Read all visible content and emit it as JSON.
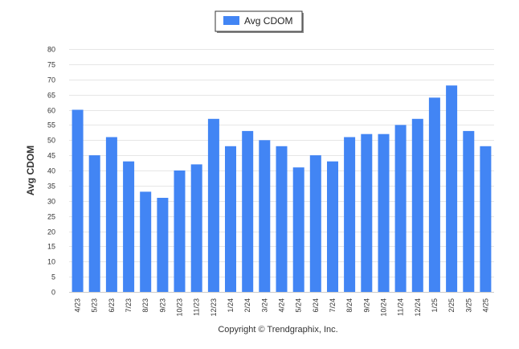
{
  "chart_data": {
    "type": "bar",
    "categories": [
      "4/23",
      "5/23",
      "6/23",
      "7/23",
      "8/23",
      "9/23",
      "10/23",
      "11/23",
      "12/23",
      "1/24",
      "2/24",
      "3/24",
      "4/24",
      "5/24",
      "6/24",
      "7/24",
      "8/24",
      "9/24",
      "10/24",
      "11/24",
      "12/24",
      "1/25",
      "2/25",
      "3/25",
      "4/25"
    ],
    "series": [
      {
        "name": "Avg CDOM",
        "values": [
          60,
          45,
          51,
          43,
          33,
          31,
          40,
          42,
          57,
          48,
          53,
          50,
          48,
          41,
          45,
          43,
          51,
          52,
          52,
          55,
          57,
          64,
          68,
          53,
          48
        ],
        "color": "#4285f4"
      }
    ],
    "xlabel": "",
    "ylabel": "Avg CDOM",
    "ylim": [
      0,
      80
    ],
    "yticks": [
      0,
      5,
      10,
      15,
      20,
      25,
      30,
      35,
      40,
      45,
      50,
      55,
      60,
      65,
      70,
      75,
      80
    ],
    "grid": true,
    "legend": "top-center"
  },
  "footer": {
    "copyright": "Copyright © Trendgraphix, Inc."
  }
}
